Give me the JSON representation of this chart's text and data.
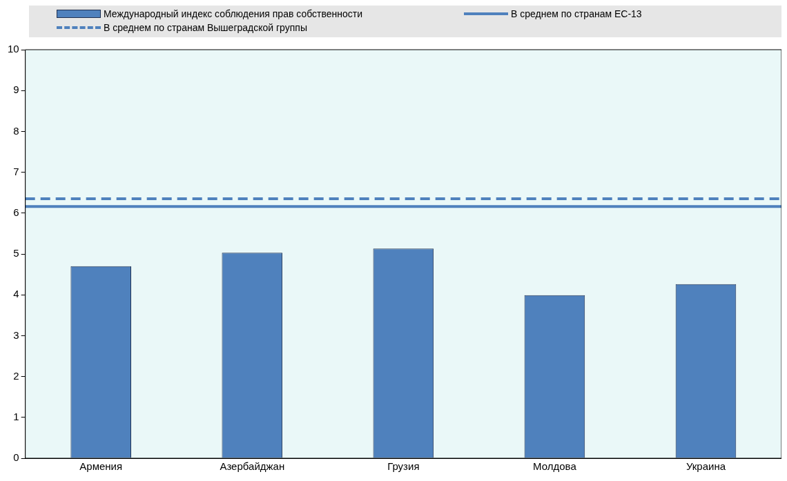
{
  "chart_data": {
    "type": "bar",
    "categories": [
      "Армения",
      "Азербайджан",
      "Грузия",
      "Молдова",
      "Украина"
    ],
    "series": [
      {
        "name": "Международный индекс соблюдения прав собственности",
        "color": "#4f81bd",
        "values": [
          4.7,
          5.03,
          5.13,
          3.99,
          4.26
        ]
      }
    ],
    "ref_lines": [
      {
        "axis": "y",
        "value": 6.16,
        "label": "В среднем по странам ЕС-13",
        "color": "#4f81bd",
        "line_style": "solid"
      },
      {
        "axis": "y",
        "value": 6.35,
        "label": "В среднем по странам Вышеградской группы",
        "color": "#4f81bd",
        "line_style": "dashed"
      }
    ],
    "ylim": [
      0,
      10
    ],
    "yticks": [
      0,
      1,
      2,
      3,
      4,
      5,
      6,
      7,
      8,
      9,
      10
    ],
    "legend": "top"
  }
}
